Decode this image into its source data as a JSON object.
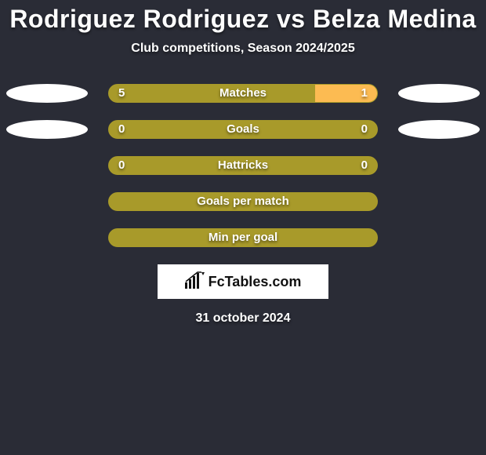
{
  "title": "Rodriguez Rodriguez vs Belza Medina",
  "subtitle": "Club competitions, Season 2024/2025",
  "date": "31 october 2024",
  "logo": "FcTables.com",
  "colors": {
    "background": "#2a2c36",
    "bar_olive": "#a89a2a",
    "bar_highlight": "#fcbb52",
    "side_ellipse": "#ffffff",
    "border_olive": "#a89a2a",
    "text": "#ffffff"
  },
  "side_ellipses": {
    "row0": {
      "left_color": "#ffffff",
      "right_color": "#ffffff"
    },
    "row1": {
      "left_color": "#ffffff",
      "right_color": "#ffffff"
    }
  },
  "bars": [
    {
      "label": "Matches",
      "left_value": "5",
      "right_value": "1",
      "left_fill_pct": 77,
      "right_fill_pct": 23,
      "left_fill_color": "#a89a2a",
      "right_fill_color": "#fcbb52",
      "border_color": "#a89a2a",
      "show_side_ellipses": true
    },
    {
      "label": "Goals",
      "left_value": "0",
      "right_value": "0",
      "left_fill_pct": 100,
      "right_fill_pct": 0,
      "left_fill_color": "#a89a2a",
      "right_fill_color": "#a89a2a",
      "border_color": "#a89a2a",
      "show_side_ellipses": true
    },
    {
      "label": "Hattricks",
      "left_value": "0",
      "right_value": "0",
      "left_fill_pct": 100,
      "right_fill_pct": 0,
      "left_fill_color": "#a89a2a",
      "right_fill_color": "#a89a2a",
      "border_color": "#a89a2a",
      "show_side_ellipses": false
    },
    {
      "label": "Goals per match",
      "left_value": "",
      "right_value": "",
      "left_fill_pct": 100,
      "right_fill_pct": 0,
      "left_fill_color": "#a89a2a",
      "right_fill_color": "#a89a2a",
      "border_color": "#a89a2a",
      "show_side_ellipses": false
    },
    {
      "label": "Min per goal",
      "left_value": "",
      "right_value": "",
      "left_fill_pct": 100,
      "right_fill_pct": 0,
      "left_fill_color": "#a89a2a",
      "right_fill_color": "#a89a2a",
      "border_color": "#a89a2a",
      "show_side_ellipses": false
    }
  ]
}
